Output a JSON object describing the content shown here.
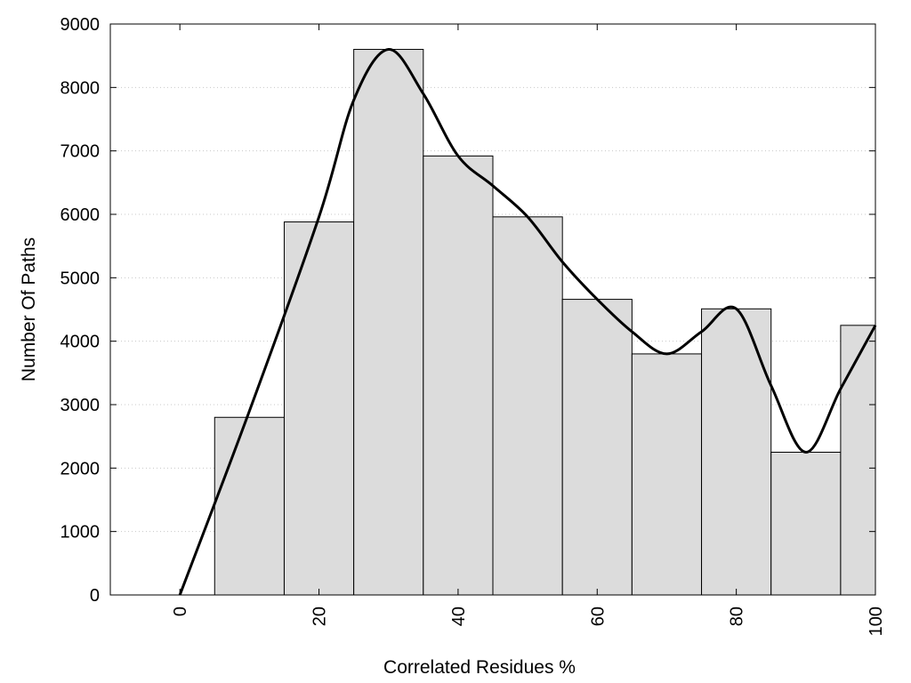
{
  "chart_data": {
    "type": "bar",
    "xlabel": "Correlated Residues %",
    "ylabel": "Number Of Paths",
    "xlim": [
      -10,
      100
    ],
    "ylim": [
      0,
      9000
    ],
    "xticks": [
      "0",
      "20",
      "40",
      "60",
      "80",
      "100"
    ],
    "yticks": [
      "0",
      "1000",
      "2000",
      "3000",
      "4000",
      "5000",
      "6000",
      "7000",
      "8000",
      "9000"
    ],
    "grid": "horizontal dotted",
    "bin_width": 10,
    "bins": [
      {
        "center": 10,
        "value": 2800
      },
      {
        "center": 20,
        "value": 5880
      },
      {
        "center": 30,
        "value": 8600
      },
      {
        "center": 40,
        "value": 6920
      },
      {
        "center": 50,
        "value": 5960
      },
      {
        "center": 60,
        "value": 4660
      },
      {
        "center": 70,
        "value": 3800
      },
      {
        "center": 80,
        "value": 4510
      },
      {
        "center": 90,
        "value": 2250
      },
      {
        "center": 100,
        "value": 4250
      }
    ],
    "curve": [
      [
        0,
        0
      ],
      [
        10,
        2900
      ],
      [
        20,
        5960
      ],
      [
        25,
        7800
      ],
      [
        30,
        8600
      ],
      [
        35,
        7900
      ],
      [
        40,
        6920
      ],
      [
        45,
        6450
      ],
      [
        50,
        5960
      ],
      [
        55,
        5250
      ],
      [
        60,
        4660
      ],
      [
        65,
        4150
      ],
      [
        70,
        3800
      ],
      [
        75,
        4150
      ],
      [
        80,
        4510
      ],
      [
        85,
        3300
      ],
      [
        90,
        2250
      ],
      [
        95,
        3250
      ],
      [
        100,
        4250
      ]
    ],
    "colors": {
      "bar_fill": "#dcdcdc",
      "bar_stroke": "#000000",
      "curve": "#000000",
      "grid": "#c8c8c8"
    }
  }
}
